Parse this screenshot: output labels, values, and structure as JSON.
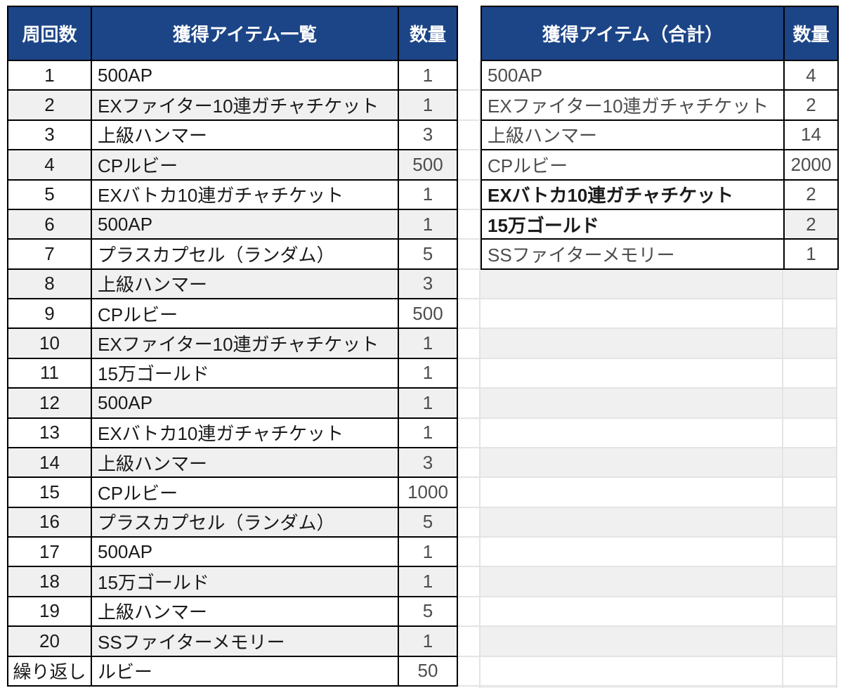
{
  "colors": {
    "header_bg": "#1c4587",
    "header_text": "#ffffff",
    "row_band": "#f0f0f0",
    "table_border": "#000000",
    "light_gridline": "#e4e4e4",
    "text_primary": "#1a1a1a",
    "text_secondary": "#4d4d4d"
  },
  "left_table": {
    "headers": [
      "周回数",
      "獲得アイテム一覧",
      "数量"
    ],
    "rows": [
      [
        "1",
        "500AP",
        "1"
      ],
      [
        "2",
        "EXファイター10連ガチャチケット",
        "1"
      ],
      [
        "3",
        "上級ハンマー",
        "3"
      ],
      [
        "4",
        "CPルビー",
        "500"
      ],
      [
        "5",
        "EXバトカ10連ガチャチケット",
        "1"
      ],
      [
        "6",
        "500AP",
        "1"
      ],
      [
        "7",
        "プラスカプセル（ランダム）",
        "5"
      ],
      [
        "8",
        "上級ハンマー",
        "3"
      ],
      [
        "9",
        "CPルビー",
        "500"
      ],
      [
        "10",
        "EXファイター10連ガチャチケット",
        "1"
      ],
      [
        "11",
        "15万ゴールド",
        "1"
      ],
      [
        "12",
        "500AP",
        "1"
      ],
      [
        "13",
        "EXバトカ10連ガチャチケット",
        "1"
      ],
      [
        "14",
        "上級ハンマー",
        "3"
      ],
      [
        "15",
        "CPルビー",
        "1000"
      ],
      [
        "16",
        "プラスカプセル（ランダム）",
        "5"
      ],
      [
        "17",
        "500AP",
        "1"
      ],
      [
        "18",
        "15万ゴールド",
        "1"
      ],
      [
        "19",
        "上級ハンマー",
        "5"
      ],
      [
        "20",
        "SSファイターメモリー",
        "1"
      ],
      [
        "繰り返し",
        "ルビー",
        "50"
      ]
    ]
  },
  "right_table": {
    "headers": [
      "獲得アイテム（合計）",
      "数量"
    ],
    "rows": [
      {
        "item": "500AP",
        "qty": "4",
        "bold": false,
        "qty_shaded": false
      },
      {
        "item": "EXファイター10連ガチャチケット",
        "qty": "2",
        "bold": false,
        "qty_shaded": false
      },
      {
        "item": "上級ハンマー",
        "qty": "14",
        "bold": false,
        "qty_shaded": false
      },
      {
        "item": "CPルビー",
        "qty": "2000",
        "bold": false,
        "qty_shaded": false
      },
      {
        "item": "EXバトカ10連ガチャチケット",
        "qty": "2",
        "bold": true,
        "qty_shaded": false
      },
      {
        "item": "15万ゴールド",
        "qty": "2",
        "bold": true,
        "qty_shaded": true
      },
      {
        "item": "SSファイターメモリー",
        "qty": "1",
        "bold": false,
        "qty_shaded": false
      }
    ]
  }
}
